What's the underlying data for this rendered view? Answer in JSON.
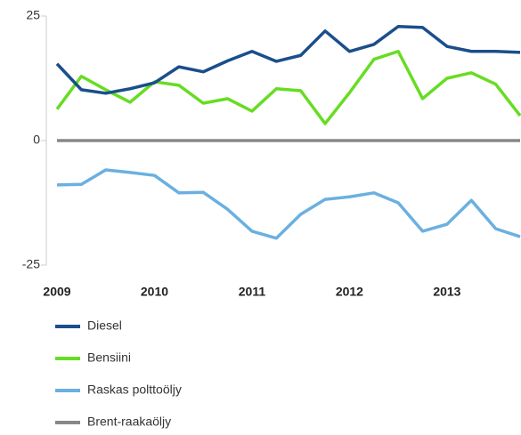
{
  "chart_data": {
    "type": "line",
    "x": [
      2009,
      2009.25,
      2009.5,
      2009.75,
      2010,
      2010.25,
      2010.5,
      2010.75,
      2011,
      2011.25,
      2011.5,
      2011.75,
      2012,
      2012.25,
      2012.5,
      2012.75,
      2013,
      2013.25,
      2013.5,
      2013.75
    ],
    "xlim": [
      2009,
      2013.75
    ],
    "xticks": [
      2009,
      2010,
      2011,
      2012,
      2013
    ],
    "ylim": [
      -25,
      25
    ],
    "yticks": [
      -25,
      0,
      25
    ],
    "series": [
      {
        "name": "Diesel",
        "color": "#1a4e8c",
        "values": [
          15.4,
          10.2,
          9.5,
          10.4,
          11.6,
          14.8,
          13.8,
          16,
          17.9,
          15.9,
          17.1,
          22,
          17.9,
          19.3,
          22.9,
          22.7,
          18.9,
          17.9,
          17.9,
          17.7
        ]
      },
      {
        "name": "Bensiini",
        "color": "#66dd22",
        "values": [
          6.3,
          12.9,
          10.2,
          7.7,
          11.8,
          11.1,
          7.5,
          8.4,
          5.9,
          10.4,
          10,
          3.4,
          9.6,
          16.3,
          17.9,
          8.4,
          12.5,
          13.6,
          11.3,
          5
        ]
      },
      {
        "name": "Raskas polttoöljy",
        "color": "#6ab0e0",
        "values": [
          -8.9,
          -8.8,
          -5.9,
          -6.4,
          -7,
          -10.5,
          -10.4,
          -13.8,
          -18.2,
          -19.6,
          -14.8,
          -11.8,
          -11.3,
          -10.5,
          -12.5,
          -18.2,
          -16.8,
          -12,
          -17.7,
          -19.3
        ]
      },
      {
        "name": "Brent-raakaöljy",
        "color": "#888888",
        "values": [
          0,
          0,
          0,
          0,
          0,
          0,
          0,
          0,
          0,
          0,
          0,
          0,
          0,
          0,
          0,
          0,
          0,
          0,
          0,
          0
        ]
      }
    ]
  }
}
